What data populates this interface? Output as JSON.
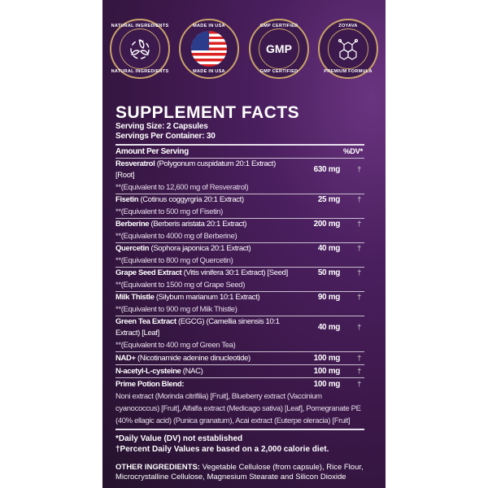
{
  "badges": [
    {
      "top": "NATURAL INGREDIENTS",
      "bottom": "NATURAL INGREDIENTS",
      "icon": "leaves-recycle-icon"
    },
    {
      "top": "MADE IN USA",
      "bottom": "MADE IN USA",
      "icon": "us-flag-icon"
    },
    {
      "top": "GMP CERTIFIED",
      "bottom": "GMP CERTIFIED",
      "center": "GMP"
    },
    {
      "top": "ZOYAVA",
      "bottom": "PREMIUM FORMULA",
      "icon": "molecule-icon"
    }
  ],
  "facts": {
    "title": "SUPPLEMENT FACTS",
    "serving_size": "Serving Size: 2 Capsules",
    "servings_per_container": "Servings Per Container: 30",
    "header_amount": "Amount Per Serving",
    "header_dv": "%DV*",
    "rows": [
      {
        "name": "Resveratrol",
        "detail": "(Polygonum cuspidatum 20:1 Extract) [Root]",
        "amount": "630 mg",
        "dv": "†",
        "sub": "**(Equivalent to 12,600 mg of Resveratrol)"
      },
      {
        "name": "Fisetin",
        "detail": "(Cotinus coggyrgria 20:1 Extract)",
        "amount": "25 mg",
        "dv": "†",
        "sub": "**(Equivalent to 500 mg of Fisetin)"
      },
      {
        "name": "Berberine",
        "detail": "(Berberis aristata 20:1 Extract)",
        "amount": "200 mg",
        "dv": "†",
        "sub": "**(Equivalent to 4000 mg of Berberine)"
      },
      {
        "name": "Quercetin",
        "detail": "(Sophora japonica 20:1 Extract)",
        "amount": "40 mg",
        "dv": "†",
        "sub": "**(Equivalent to 800 mg of Quercetin)"
      },
      {
        "name": "Grape Seed Extract",
        "detail": "(Vitis vinifera 30:1 Extract) [Seed]",
        "amount": "50 mg",
        "dv": "†",
        "sub": "**(Equivalent to 1500 mg of Grape Seed)"
      },
      {
        "name": "Milk Thistle",
        "detail": "(Silybum marianum 10:1 Extract)",
        "amount": "90 mg",
        "dv": "†",
        "sub": "**(Equivalent to 900 mg of Milk Thistle)"
      },
      {
        "name": "Green Tea Extract",
        "detail": "(EGCG) (Camellia sinensis 10:1 Extract) [Leaf]",
        "amount": "40 mg",
        "dv": "†",
        "sub": "**(Equivalent to 400 mg of Green Tea)"
      },
      {
        "name": "NAD+",
        "detail": "(Nicotinamide adenine dinucleotide)",
        "amount": "100 mg",
        "dv": "†"
      },
      {
        "name": "N-acetyl-L-cysteine",
        "detail": "(NAC)",
        "amount": "100 mg",
        "dv": "†"
      },
      {
        "name": "Prime Potion Blend:",
        "detail": "",
        "amount": "100 mg",
        "dv": "†"
      }
    ],
    "blend_text": "Noni extract (Morinda citrifilia) [Fruit], Blueberry extract (Vaccinium cyanococcus) [Fruit], Alfalfa extract (Medicago sativa) [Leaf], Pomegranate PE (40% ellagic acid) (Punica granatum), Acai extract (Euterpe oleracia) [Fruit]",
    "footnote_dv": "*Daily Value (DV) not established",
    "footnote_calorie": "†Percent Daily Values are based on a 2,000 calorie diet.",
    "other_label": "OTHER INGREDIENTS:",
    "other_text": " Vegetable Cellulose (from capsule), Rice Flour, Microcrystalline Cellulose, Magnesium Stearate and Silicon Dioxide"
  },
  "colors": {
    "background": "#3a1747",
    "badge_ring": "#c9a36a"
  }
}
